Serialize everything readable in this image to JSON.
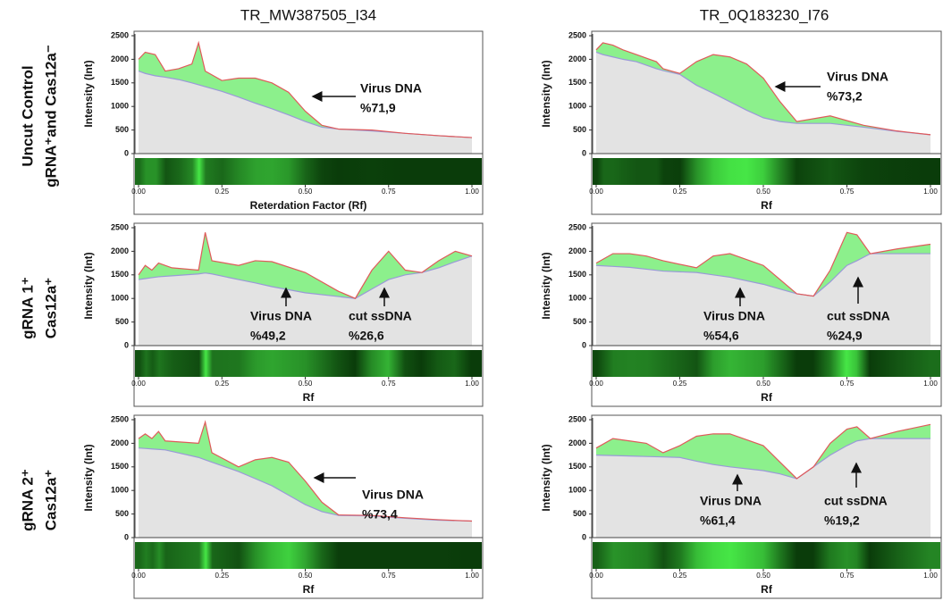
{
  "figure": {
    "column_titles": [
      "TR_MW387505_I34",
      "TR_0Q183230_I76"
    ],
    "row_labels": [
      [
        "Uncut Control",
        "gRNA⁺and Cas12a⁻"
      ],
      [
        "gRNA 1⁺",
        "Cas12a⁺"
      ],
      [
        "gRNA 2⁺",
        "Cas12a⁺"
      ]
    ]
  },
  "chart_data": [
    {
      "type": "area",
      "y_label": "Intensity (Int)",
      "x_label": "Reterdation Factor (Rf)",
      "xlim": [
        0,
        1
      ],
      "ylim": [
        0,
        2500
      ],
      "yticks": [
        0,
        500,
        1000,
        1500,
        2000,
        2500
      ],
      "xticks": [
        {
          "value": 0,
          "label": "0.00"
        },
        {
          "value": 0.25,
          "label": "0.25"
        },
        {
          "value": 0.5,
          "label": "0.50"
        },
        {
          "value": 0.75,
          "label": "0.75"
        },
        {
          "value": 1,
          "label": "1.00"
        }
      ],
      "fill_color": "#8cf08c",
      "x": [
        0,
        0.02,
        0.05,
        0.08,
        0.12,
        0.16,
        0.18,
        0.2,
        0.25,
        0.3,
        0.35,
        0.4,
        0.45,
        0.5,
        0.55,
        0.6,
        0.7,
        0.8,
        0.9,
        1
      ],
      "series": [
        {
          "color": "#e05a5a",
          "values": [
            2000,
            2150,
            2100,
            1750,
            1800,
            1900,
            2350,
            1750,
            1550,
            1600,
            1600,
            1500,
            1300,
            900,
            600,
            520,
            500,
            430,
            380,
            340
          ]
        },
        {
          "color": "#9a9ad8",
          "values": [
            1750,
            1700,
            1650,
            1620,
            1570,
            1500,
            1460,
            1420,
            1320,
            1200,
            1070,
            950,
            820,
            680,
            560,
            520,
            480,
            430,
            380,
            340
          ]
        }
      ],
      "annotations": [
        {
          "label": "Virus DNA",
          "percent": "%71,9"
        }
      ]
    },
    {
      "type": "area",
      "y_label": "Intensity (Int)",
      "x_label": "Rf",
      "xlim": [
        0,
        1
      ],
      "ylim": [
        0,
        2500
      ],
      "yticks": [
        0,
        500,
        1000,
        1500,
        2000,
        2500
      ],
      "xticks": [
        {
          "value": 0,
          "label": "0.00"
        },
        {
          "value": 0.25,
          "label": "0.25"
        },
        {
          "value": 0.5,
          "label": "0.50"
        },
        {
          "value": 0.75,
          "label": "0.75"
        },
        {
          "value": 1,
          "label": "1.00"
        }
      ],
      "fill_color": "#8cf08c",
      "x": [
        0,
        0.02,
        0.05,
        0.08,
        0.12,
        0.16,
        0.18,
        0.2,
        0.25,
        0.3,
        0.35,
        0.4,
        0.45,
        0.5,
        0.55,
        0.6,
        0.7,
        0.8,
        0.9,
        1
      ],
      "series": [
        {
          "color": "#e05a5a",
          "values": [
            2200,
            2350,
            2300,
            2200,
            2100,
            2000,
            1950,
            1800,
            1700,
            1950,
            2100,
            2050,
            1900,
            1600,
            1100,
            680,
            800,
            600,
            480,
            400
          ]
        },
        {
          "color": "#9a9ad8",
          "values": [
            2150,
            2100,
            2050,
            2000,
            1950,
            1850,
            1800,
            1760,
            1680,
            1450,
            1280,
            1100,
            920,
            760,
            680,
            640,
            640,
            560,
            470,
            400
          ]
        }
      ],
      "annotations": [
        {
          "label": "Virus DNA",
          "percent": "%73,2"
        }
      ]
    },
    {
      "type": "area",
      "y_label": "Intensity (Int)",
      "x_label": "Rf",
      "xlim": [
        0,
        1
      ],
      "ylim": [
        0,
        2500
      ],
      "yticks": [
        0,
        500,
        1000,
        1500,
        2000,
        2500
      ],
      "xticks": [
        {
          "value": 0,
          "label": "0.00"
        },
        {
          "value": 0.25,
          "label": "0.25"
        },
        {
          "value": 0.5,
          "label": "0.50"
        },
        {
          "value": 0.75,
          "label": "0.75"
        },
        {
          "value": 1,
          "label": "1.00"
        }
      ],
      "fill_color": "#8cf08c",
      "x": [
        0,
        0.02,
        0.04,
        0.06,
        0.1,
        0.18,
        0.2,
        0.22,
        0.3,
        0.35,
        0.4,
        0.5,
        0.6,
        0.65,
        0.7,
        0.75,
        0.8,
        0.85,
        0.9,
        0.95,
        1
      ],
      "series": [
        {
          "color": "#e05a5a",
          "values": [
            1500,
            1700,
            1600,
            1750,
            1650,
            1600,
            2400,
            1800,
            1700,
            1800,
            1780,
            1550,
            1150,
            1000,
            1600,
            2000,
            1600,
            1550,
            1800,
            2000,
            1900
          ]
        },
        {
          "color": "#9a9ad8",
          "values": [
            1400,
            1420,
            1440,
            1460,
            1480,
            1520,
            1540,
            1520,
            1400,
            1330,
            1250,
            1120,
            1040,
            1000,
            1200,
            1400,
            1500,
            1550,
            1650,
            1780,
            1900
          ]
        }
      ],
      "annotations": [
        {
          "label": "Virus DNA",
          "percent": "%49,2"
        },
        {
          "label": "cut ssDNA",
          "percent": "%26,6"
        }
      ]
    },
    {
      "type": "area",
      "y_label": "Intensity (Int)",
      "x_label": "Rf",
      "xlim": [
        0,
        1
      ],
      "ylim": [
        0,
        2500
      ],
      "yticks": [
        0,
        500,
        1000,
        1500,
        2000,
        2500
      ],
      "xticks": [
        {
          "value": 0,
          "label": "0.00"
        },
        {
          "value": 0.25,
          "label": "0.25"
        },
        {
          "value": 0.5,
          "label": "0.50"
        },
        {
          "value": 0.75,
          "label": "0.75"
        },
        {
          "value": 1,
          "label": "1.00"
        }
      ],
      "fill_color": "#8cf08c",
      "x": [
        0,
        0.05,
        0.1,
        0.15,
        0.2,
        0.3,
        0.35,
        0.4,
        0.5,
        0.55,
        0.6,
        0.65,
        0.7,
        0.75,
        0.78,
        0.82,
        0.9,
        1
      ],
      "series": [
        {
          "color": "#e05a5a",
          "values": [
            1750,
            1950,
            1950,
            1900,
            1800,
            1650,
            1900,
            1950,
            1700,
            1400,
            1100,
            1050,
            1600,
            2400,
            2350,
            1950,
            2050,
            2150
          ]
        },
        {
          "color": "#9a9ad8",
          "values": [
            1700,
            1680,
            1660,
            1620,
            1580,
            1550,
            1500,
            1450,
            1300,
            1200,
            1100,
            1050,
            1350,
            1700,
            1800,
            1950,
            1950,
            1950
          ]
        }
      ],
      "annotations": [
        {
          "label": "Virus DNA",
          "percent": "%54,6"
        },
        {
          "label": "cut ssDNA",
          "percent": "%24,9"
        }
      ]
    },
    {
      "type": "area",
      "y_label": "Intensity (Int)",
      "x_label": "Rf",
      "xlim": [
        0,
        1
      ],
      "ylim": [
        0,
        2500
      ],
      "yticks": [
        0,
        500,
        1000,
        1500,
        2000,
        2500
      ],
      "xticks": [
        {
          "value": 0,
          "label": "0.00"
        },
        {
          "value": 0.25,
          "label": "0.25"
        },
        {
          "value": 0.5,
          "label": "0.50"
        },
        {
          "value": 0.75,
          "label": "0.75"
        },
        {
          "value": 1,
          "label": "1.00"
        }
      ],
      "fill_color": "#8cf08c",
      "x": [
        0,
        0.02,
        0.04,
        0.06,
        0.08,
        0.18,
        0.2,
        0.22,
        0.3,
        0.35,
        0.4,
        0.45,
        0.5,
        0.55,
        0.6,
        0.7,
        0.8,
        0.9,
        1
      ],
      "series": [
        {
          "color": "#e05a5a",
          "values": [
            2100,
            2200,
            2100,
            2250,
            2050,
            2000,
            2450,
            1800,
            1500,
            1650,
            1700,
            1600,
            1200,
            750,
            480,
            470,
            420,
            380,
            350
          ]
        },
        {
          "color": "#9a9ad8",
          "values": [
            1900,
            1890,
            1880,
            1870,
            1860,
            1700,
            1650,
            1600,
            1400,
            1250,
            1100,
            900,
            700,
            550,
            470,
            460,
            410,
            370,
            350
          ]
        }
      ],
      "annotations": [
        {
          "label": "Virus DNA",
          "percent": "%73,4"
        }
      ]
    },
    {
      "type": "area",
      "y_label": "Intensity (Int)",
      "x_label": "Rf",
      "xlim": [
        0,
        1
      ],
      "ylim": [
        0,
        2500
      ],
      "yticks": [
        0,
        500,
        1000,
        1500,
        2000,
        2500
      ],
      "xticks": [
        {
          "value": 0,
          "label": "0.00"
        },
        {
          "value": 0.25,
          "label": "0.25"
        },
        {
          "value": 0.5,
          "label": "0.50"
        },
        {
          "value": 0.75,
          "label": "0.75"
        },
        {
          "value": 1,
          "label": "1.00"
        }
      ],
      "fill_color": "#8cf08c",
      "x": [
        0,
        0.05,
        0.1,
        0.15,
        0.2,
        0.25,
        0.3,
        0.35,
        0.4,
        0.5,
        0.55,
        0.6,
        0.65,
        0.7,
        0.75,
        0.78,
        0.82,
        0.9,
        1
      ],
      "series": [
        {
          "color": "#e05a5a",
          "values": [
            1900,
            2100,
            2050,
            2000,
            1800,
            1950,
            2150,
            2200,
            2200,
            1950,
            1600,
            1250,
            1500,
            2000,
            2300,
            2350,
            2100,
            2250,
            2400
          ]
        },
        {
          "color": "#9a9ad8",
          "values": [
            1750,
            1740,
            1730,
            1720,
            1710,
            1700,
            1620,
            1550,
            1500,
            1420,
            1350,
            1250,
            1500,
            1750,
            1950,
            2050,
            2100,
            2100,
            2100
          ]
        }
      ],
      "annotations": [
        {
          "label": "Virus DNA",
          "percent": "%61,4"
        },
        {
          "label": "cut ssDNA",
          "percent": "%19,2"
        }
      ]
    }
  ]
}
